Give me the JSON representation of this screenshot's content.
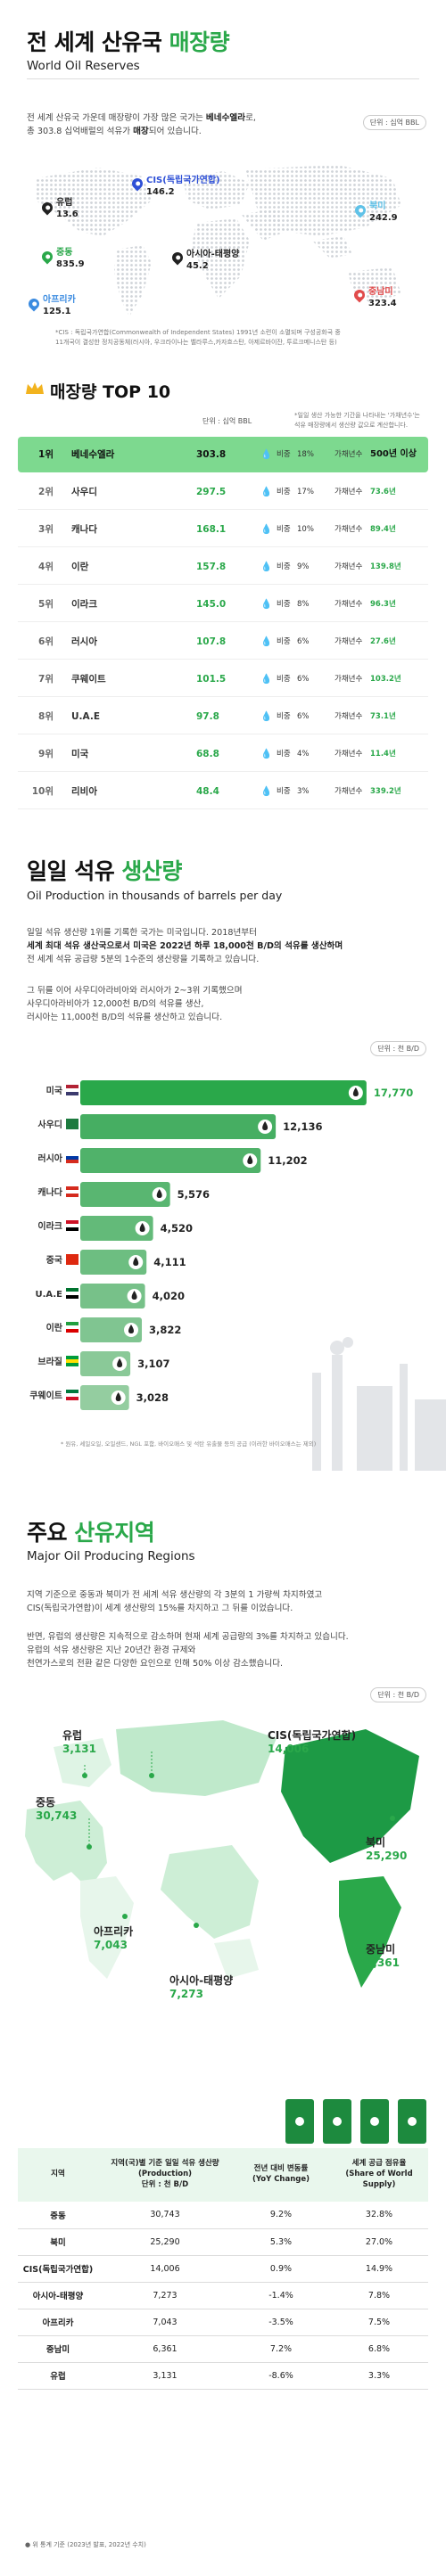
{
  "reserves": {
    "title_plain": "전 세계 산유국 ",
    "title_green": "매장량",
    "subtitle": "World Oil Reserves",
    "intro": "전 세계 산유국 가운데 매장량이 가장 많은 국가는 ",
    "intro_bold1": "베네수엘라",
    "intro_mid": "로,",
    "intro_line2": "총 303.8 십억배럴의 석유가 ",
    "intro_bold2": "매장",
    "intro_end": "되어 있습니다.",
    "unit": "단위 : 십억 BBL",
    "regions": [
      {
        "name": "CIS(독립국가연합)",
        "value": "146.2",
        "color": "#2d4fd6"
      },
      {
        "name": "유럽",
        "value": "13.6",
        "color": "#222222"
      },
      {
        "name": "북미",
        "value": "242.9",
        "color": "#5fc2e8"
      },
      {
        "name": "중동",
        "value": "835.9",
        "color": "#2aa84a"
      },
      {
        "name": "아시아-태평양",
        "value": "45.2",
        "color": "#222222"
      },
      {
        "name": "아프리카",
        "value": "125.1",
        "color": "#3b8be0"
      },
      {
        "name": "중남미",
        "value": "323.4",
        "color": "#e14b4b"
      }
    ],
    "footnote": "*CIS : 독립국가연합(Commonwealth of Independent States) 1991년 소련이 소멸되며 구성공화국 중\n11개국이 결성한 정치공동체(러시아, 우크라이나는 벨라루스,카자흐스탄, 아제르바이잔, 투르크메니스탄 등)"
  },
  "top10": {
    "title": "매장량 TOP 10",
    "note_pre": "*일일 생산 가능한 기간을 나타내는 '가채년수'는",
    "note_post": "석유 매장량에서 생산량 값으로 계산합니다.",
    "unit": "단위 : 십억 BBL",
    "share_prefix": "비중",
    "years_prefix": "가채년수",
    "rows": [
      {
        "rank": "1위",
        "country": "베네수엘라",
        "value": "303.8",
        "share": "18%",
        "years": "500년 이상"
      },
      {
        "rank": "2위",
        "country": "사우디",
        "value": "297.5",
        "share": "17%",
        "years": "73.6년"
      },
      {
        "rank": "3위",
        "country": "캐나다",
        "value": "168.1",
        "share": "10%",
        "years": "89.4년"
      },
      {
        "rank": "4위",
        "country": "이란",
        "value": "157.8",
        "share": "9%",
        "years": "139.8년"
      },
      {
        "rank": "5위",
        "country": "이라크",
        "value": "145.0",
        "share": "8%",
        "years": "96.3년"
      },
      {
        "rank": "6위",
        "country": "러시아",
        "value": "107.8",
        "share": "6%",
        "years": "27.6년"
      },
      {
        "rank": "7위",
        "country": "쿠웨이트",
        "value": "101.5",
        "share": "6%",
        "years": "103.2년"
      },
      {
        "rank": "8위",
        "country": "U.A.E",
        "value": "97.8",
        "share": "6%",
        "years": "73.1년"
      },
      {
        "rank": "9위",
        "country": "미국",
        "value": "68.8",
        "share": "4%",
        "years": "11.4년"
      },
      {
        "rank": "10위",
        "country": "리비아",
        "value": "48.4",
        "share": "3%",
        "years": "339.2년"
      }
    ]
  },
  "production": {
    "title_plain": "일일 석유 ",
    "title_green": "생산량",
    "subtitle": "Oil Production in thousands of barrels per day",
    "p1_l1": "일일 석유 생산량 1위를 기록한 국가는 미국입니다. 2018년부터",
    "p1_l2": "세계 최대 석유 생산국으로서 미국은 2022년 하루 18,000천 B/D의 석유를 생산하며",
    "p1_l3": "전 세계 석유 공급량 5분의 1수준의 생산량을 기록하고 있습니다.",
    "p2_l1": "그 뒤를 이어 사우디아라비아와 러시아가 2~3위 기록했으며",
    "p2_l2": "사우디아라비아가 12,000천 B/D의 석유를 생산,",
    "p2_l3": "러시아는 11,000천 B/D의 석유를 생산하고 있습니다.",
    "unit": "단위 : 천 B/D",
    "footnote": "* 원유, 셰일오일, 오일샌드, NGL 포함, 바이오매스 및 석탄 유출물 등의 공급 (이러한 바이오매스는 제외)"
  },
  "regions_section": {
    "title_plain": "주요 ",
    "title_green": "산유지역",
    "subtitle": "Major Oil Producing Regions",
    "p1_l1": "지역 기준으로 중동과 북미가 전 세계 석유 생산량의 각 3분의 1 가량씩 차지하였고",
    "p1_l2": "CIS(독립국가연합)이 세계 생산량의 15%를 차지하고 그 뒤를 이었습니다.",
    "p2_l1": "반면, 유럽의 생산량은 지속적으로 감소하며 현재 세계 공급량의 3%를 차지하고 있습니다.",
    "p2_l2": "유럽의 석유 생산량은 지난 20년간 환경 규제와",
    "p2_l3": "천연가스로의 전환 같은 다양한 요인으로 인해 50% 이상 감소했습니다.",
    "unit": "단위 : 천 B/D",
    "map_labels": [
      {
        "name": "유럽",
        "value": "3,131"
      },
      {
        "name": "CIS(독립국가연합)",
        "value": "14,006"
      },
      {
        "name": "중동",
        "value": "30,743"
      },
      {
        "name": "북미",
        "value": "25,290"
      },
      {
        "name": "중남미",
        "value": "6,361"
      },
      {
        "name": "아프리카",
        "value": "7,043"
      },
      {
        "name": "아시아-태평양",
        "value": "7,273"
      }
    ]
  },
  "table": {
    "headers": [
      "지역",
      "지역(국)별 기준 일일 석유 생산량\n(Production)\n단위 : 천 B/D",
      "전년 대비 변동률\n(YoY Change)",
      "세계 공급 점유율\n(Share of World Supply)"
    ],
    "rows": [
      [
        "중동",
        "30,743",
        "9.2%",
        "32.8%"
      ],
      [
        "북미",
        "25,290",
        "5.3%",
        "27.0%"
      ],
      [
        "CIS(독립국가연합)",
        "14,006",
        "0.9%",
        "14.9%"
      ],
      [
        "아시아-태평양",
        "7,273",
        "-1.4%",
        "7.8%"
      ],
      [
        "아프리카",
        "7,043",
        "-3.5%",
        "7.5%"
      ],
      [
        "중남미",
        "6,361",
        "7.2%",
        "6.8%"
      ],
      [
        "유럽",
        "3,131",
        "-8.6%",
        "3.3%"
      ]
    ],
    "footnote": "● 위 통계 기준 (2023년 발표, 2022년 수치)"
  },
  "colors": {
    "green": "#2aa84a",
    "light_green": "#e9f7ed",
    "accent_highlight": "#7dd98f"
  },
  "chart_data": {
    "type": "bar",
    "orientation": "horizontal",
    "categories": [
      "미국",
      "사우디",
      "러시아",
      "캐나다",
      "이라크",
      "중국",
      "U.A.E",
      "이란",
      "브라질",
      "쿠웨이트"
    ],
    "values": [
      17770,
      12136,
      11202,
      5576,
      4520,
      4111,
      4020,
      3822,
      3107,
      3028
    ],
    "labels": [
      "17,770",
      "12,136",
      "11,202",
      "5,576",
      "4,520",
      "4,111",
      "4,020",
      "3,822",
      "3,107",
      "3,028"
    ],
    "xlim": [
      0,
      18000
    ],
    "grid": false,
    "legend": "none"
  }
}
